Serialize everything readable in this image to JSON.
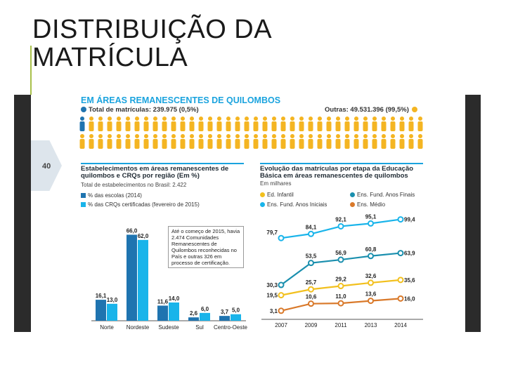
{
  "slide": {
    "title_line1": "DISTRIBUIÇÃO DA",
    "title_line2": "MATRÍCULA"
  },
  "page_number": "40",
  "header": {
    "title": "EM ÁREAS REMANESCENTES DE QUILOMBOS",
    "total_label": "Total de matrículas: 239.975 (0,5%)",
    "others_label": "Outras: 49.531.396 (99,5%)"
  },
  "colors": {
    "blue_dark": "#1f74b0",
    "blue_light": "#19b4ea",
    "orange_icon": "#f4b522",
    "yellow": "#f2c01e",
    "brown": "#d9792a",
    "teal": "#1a8fae"
  },
  "left": {
    "title_line1": "Estabelecimentos em áreas remanescentes de",
    "title_line2": "quilombos e CRQs por região (Em %)",
    "subtitle": "Total de estabelecimentos no Brasil: 2.422",
    "legend": [
      "% das escolas (2014)",
      "% das CRQs certificadas (fevereiro de 2015)"
    ],
    "note": "Até o começo de 2015, havia 2.474 Comunidades Remanescentes de Quilombos reconhecidas no País e outras 326 em processo de certificação."
  },
  "right": {
    "title_line1": "Evolução das matrículas por etapa da Educação",
    "title_line2": "Básica em áreas remanescentes de quilombos",
    "subtitle": "Em milhares",
    "legend": [
      "Ed. Infantil",
      "Ens. Fund. Anos Finais",
      "Ens. Fund. Anos Iniciais",
      "Ens. Médio"
    ]
  },
  "chart_data": [
    {
      "type": "bar",
      "title": "Estabelecimentos em áreas remanescentes de quilombos e CRQs por região (Em %)",
      "categories": [
        "Norte",
        "Nordeste",
        "Sudeste",
        "Sul",
        "Centro-Oeste"
      ],
      "series": [
        {
          "name": "% das escolas (2014)",
          "values": [
            16.1,
            66.0,
            11.6,
            2.6,
            3.7
          ],
          "labels": [
            "16,1",
            "66,0",
            "11,6",
            "2,6",
            "3,7"
          ]
        },
        {
          "name": "% das CRQs certificadas (fevereiro de 2015)",
          "values": [
            13.0,
            62.0,
            14.0,
            6.0,
            5.0
          ],
          "labels": [
            "13,0",
            "62,0",
            "14,0",
            "6,0",
            "5,0"
          ]
        }
      ],
      "ylim": [
        0,
        70
      ]
    },
    {
      "type": "line",
      "title": "Evolução das matrículas por etapa da Educação Básica em áreas remanescentes de quilombos",
      "ylabel": "Em milhares",
      "x": [
        "2007",
        "2009",
        "2011",
        "2013",
        "2014"
      ],
      "series": [
        {
          "name": "Ens. Fund. Anos Iniciais",
          "values": [
            79.7,
            84.1,
            92.1,
            95.1,
            99.4
          ],
          "labels": [
            "79,7",
            "84,1",
            "92,1",
            "95,1",
            "99,4"
          ]
        },
        {
          "name": "Ens. Fund. Anos Finais",
          "values": [
            30.3,
            53.5,
            56.9,
            60.8,
            63.9
          ],
          "labels": [
            "30,3",
            "53,5",
            "56,9",
            "60,8",
            "63,9"
          ]
        },
        {
          "name": "Ed. Infantil",
          "values": [
            19.5,
            25.7,
            29.2,
            32.6,
            35.6
          ],
          "labels": [
            "19,5",
            "25,7",
            "29,2",
            "32,6",
            "35,6"
          ]
        },
        {
          "name": "Ens. Médio",
          "values": [
            3.1,
            10.6,
            11.0,
            13.6,
            16.0
          ],
          "labels": [
            "3,1",
            "10,6",
            "11,0",
            "13,6",
            "16,0"
          ]
        }
      ],
      "ylim": [
        0,
        105
      ]
    }
  ]
}
